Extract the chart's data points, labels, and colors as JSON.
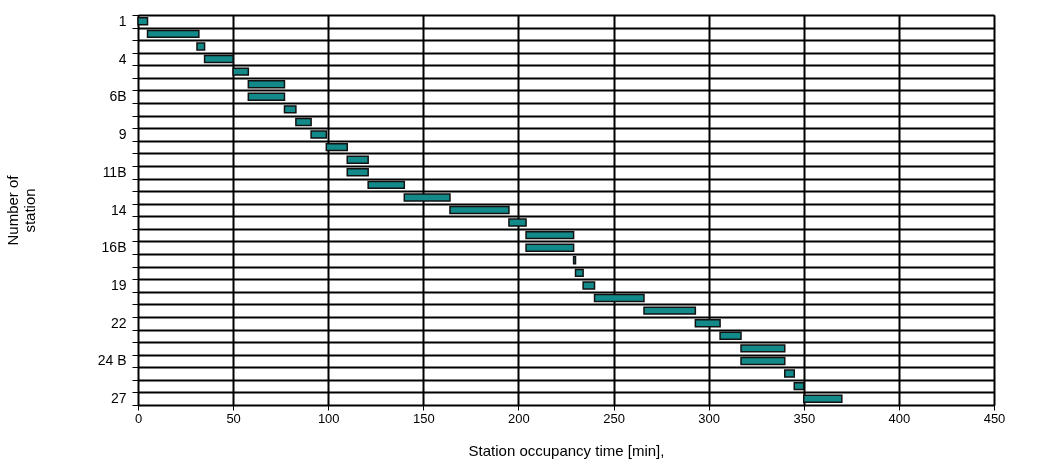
{
  "chart_data": {
    "type": "bar",
    "orientation": "horizontal",
    "xlabel": "Station occupancy time  [min],",
    "ylabel": "Number of station",
    "categories": [
      "1",
      null,
      null,
      "4",
      null,
      null,
      "6B",
      null,
      null,
      "9",
      null,
      null,
      "11B",
      null,
      null,
      "14",
      null,
      null,
      "16B",
      null,
      null,
      "19",
      null,
      null,
      "22",
      null,
      null,
      "24 B",
      null,
      null,
      "27"
    ],
    "base": [
      0,
      5,
      31,
      35,
      50,
      58,
      58,
      77,
      83,
      91,
      99,
      110,
      110,
      121,
      140,
      164,
      195,
      204,
      204,
      229,
      230,
      234,
      240,
      266,
      293,
      306,
      317,
      317,
      340,
      345,
      350
    ],
    "values": [
      5,
      27,
      4,
      15,
      8,
      19,
      19,
      6,
      8,
      8,
      11,
      11,
      11,
      19,
      24,
      31,
      9,
      25,
      25,
      1,
      4,
      6,
      26,
      27,
      13,
      11,
      23,
      23,
      5,
      5,
      20
    ],
    "color": "#138a8a",
    "xlim": [
      0,
      450
    ],
    "xticks": [
      0,
      50,
      100,
      150,
      200,
      250,
      300,
      350,
      400,
      450
    ],
    "grid": true
  }
}
